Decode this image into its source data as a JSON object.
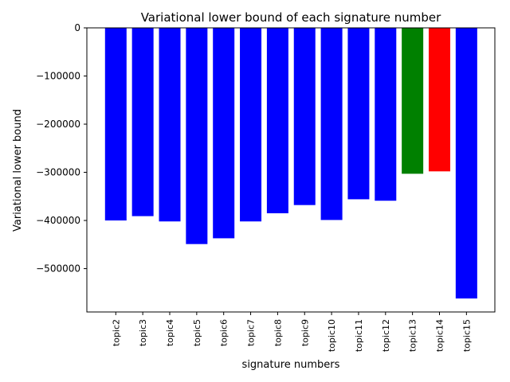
{
  "chart_data": {
    "type": "bar",
    "title": "Variational lower bound of each signature number",
    "xlabel": "signature numbers",
    "ylabel": "Variational lower bound",
    "categories": [
      "topic2",
      "topic3",
      "topic4",
      "topic5",
      "topic6",
      "topic7",
      "topic8",
      "topic9",
      "topic10",
      "topic11",
      "topic12",
      "topic13",
      "topic14",
      "topic15"
    ],
    "values": [
      -400000,
      -391000,
      -402000,
      -449000,
      -437000,
      -402000,
      -385000,
      -368000,
      -399000,
      -356000,
      -359000,
      -303000,
      -298000,
      -562000
    ],
    "colors": [
      "#0000ff",
      "#0000ff",
      "#0000ff",
      "#0000ff",
      "#0000ff",
      "#0000ff",
      "#0000ff",
      "#0000ff",
      "#0000ff",
      "#0000ff",
      "#0000ff",
      "#008000",
      "#ff0000",
      "#0000ff"
    ],
    "ylim": [
      -590000,
      0
    ],
    "yticks": [
      0,
      -100000,
      -200000,
      -300000,
      -400000,
      -500000
    ],
    "ytick_labels": [
      "0",
      "−100000",
      "−200000",
      "−300000",
      "−400000",
      "−500000"
    ],
    "grid": false,
    "legend": "none"
  }
}
